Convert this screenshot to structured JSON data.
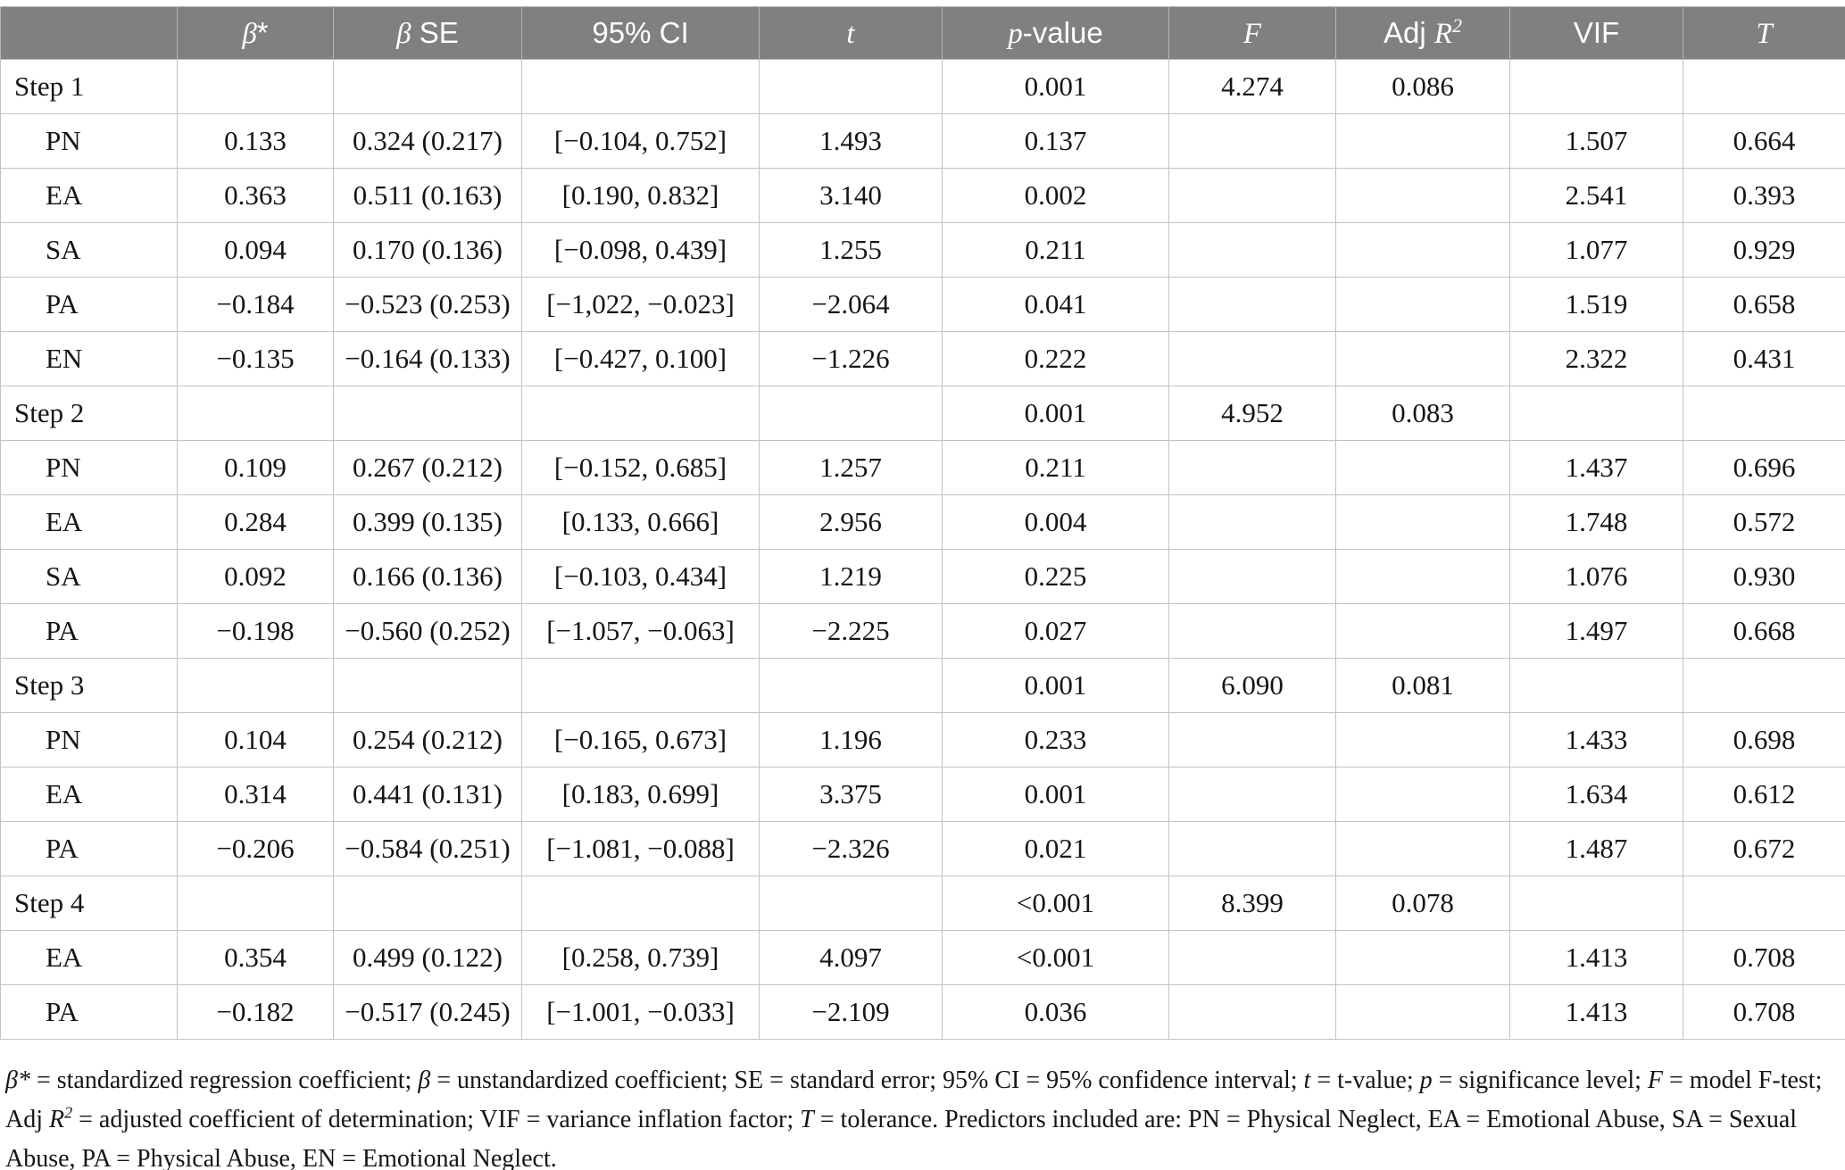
{
  "colors": {
    "header_background": "#7f8080",
    "header_text": "#ffffff",
    "cell_border": "#c2c2c2",
    "body_text": "#151515"
  },
  "table": {
    "column_keys": [
      "label",
      "beta-std",
      "beta-se",
      "ci-95",
      "t",
      "p-value",
      "f",
      "adj-r2",
      "vif",
      "tolerance"
    ],
    "columns": [
      {
        "key": "label",
        "parts": []
      },
      {
        "key": "beta-std",
        "parts": [
          {
            "t": "β",
            "i": true
          },
          {
            "t": "*",
            "i": false
          }
        ]
      },
      {
        "key": "beta-se",
        "parts": [
          {
            "t": "β",
            "i": true
          },
          {
            "t": " SE",
            "i": false
          }
        ]
      },
      {
        "key": "ci-95",
        "parts": [
          {
            "t": "95% CI",
            "i": false
          }
        ]
      },
      {
        "key": "t",
        "parts": [
          {
            "t": "t",
            "i": true
          }
        ]
      },
      {
        "key": "p-value",
        "parts": [
          {
            "t": "p",
            "i": true
          },
          {
            "t": "-value",
            "i": false
          }
        ]
      },
      {
        "key": "f",
        "parts": [
          {
            "t": "F",
            "i": true
          }
        ]
      },
      {
        "key": "adj-r2",
        "parts": [
          {
            "t": "Adj ",
            "i": false
          },
          {
            "t": "R",
            "i": true
          },
          {
            "t": "2",
            "i": true,
            "s": true
          }
        ]
      },
      {
        "key": "vif",
        "parts": [
          {
            "t": "VIF",
            "i": false
          }
        ]
      },
      {
        "key": "tolerance",
        "parts": [
          {
            "t": "T",
            "i": true
          }
        ]
      }
    ],
    "rows": [
      {
        "label": "Step 1",
        "indent": false,
        "values": [
          "",
          "",
          "",
          "",
          "0.001",
          "4.274",
          "0.086",
          "",
          ""
        ]
      },
      {
        "label": "PN",
        "indent": true,
        "values": [
          "0.133",
          "0.324 (0.217)",
          "[−0.104, 0.752]",
          "1.493",
          "0.137",
          "",
          "",
          "1.507",
          "0.664"
        ]
      },
      {
        "label": "EA",
        "indent": true,
        "values": [
          "0.363",
          "0.511 (0.163)",
          "[0.190, 0.832]",
          "3.140",
          "0.002",
          "",
          "",
          "2.541",
          "0.393"
        ]
      },
      {
        "label": "SA",
        "indent": true,
        "values": [
          "0.094",
          "0.170 (0.136)",
          "[−0.098, 0.439]",
          "1.255",
          "0.211",
          "",
          "",
          "1.077",
          "0.929"
        ]
      },
      {
        "label": "PA",
        "indent": true,
        "values": [
          "−0.184",
          "−0.523 (0.253)",
          "[−1,022, −0.023]",
          "−2.064",
          "0.041",
          "",
          "",
          "1.519",
          "0.658"
        ]
      },
      {
        "label": "EN",
        "indent": true,
        "values": [
          "−0.135",
          "−0.164 (0.133)",
          "[−0.427, 0.100]",
          "−1.226",
          "0.222",
          "",
          "",
          "2.322",
          "0.431"
        ]
      },
      {
        "label": "Step 2",
        "indent": false,
        "values": [
          "",
          "",
          "",
          "",
          "0.001",
          "4.952",
          "0.083",
          "",
          ""
        ]
      },
      {
        "label": "PN",
        "indent": true,
        "values": [
          "0.109",
          "0.267 (0.212)",
          "[−0.152, 0.685]",
          "1.257",
          "0.211",
          "",
          "",
          "1.437",
          "0.696"
        ]
      },
      {
        "label": "EA",
        "indent": true,
        "values": [
          "0.284",
          "0.399 (0.135)",
          "[0.133, 0.666]",
          "2.956",
          "0.004",
          "",
          "",
          "1.748",
          "0.572"
        ]
      },
      {
        "label": "SA",
        "indent": true,
        "values": [
          "0.092",
          "0.166 (0.136)",
          "[−0.103, 0.434]",
          "1.219",
          "0.225",
          "",
          "",
          "1.076",
          "0.930"
        ]
      },
      {
        "label": "PA",
        "indent": true,
        "values": [
          "−0.198",
          "−0.560 (0.252)",
          "[−1.057, −0.063]",
          "−2.225",
          "0.027",
          "",
          "",
          "1.497",
          "0.668"
        ]
      },
      {
        "label": "Step 3",
        "indent": false,
        "values": [
          "",
          "",
          "",
          "",
          "0.001",
          "6.090",
          "0.081",
          "",
          ""
        ]
      },
      {
        "label": "PN",
        "indent": true,
        "values": [
          "0.104",
          "0.254 (0.212)",
          "[−0.165, 0.673]",
          "1.196",
          "0.233",
          "",
          "",
          "1.433",
          "0.698"
        ]
      },
      {
        "label": "EA",
        "indent": true,
        "values": [
          "0.314",
          "0.441 (0.131)",
          "[0.183, 0.699]",
          "3.375",
          "0.001",
          "",
          "",
          "1.634",
          "0.612"
        ]
      },
      {
        "label": "PA",
        "indent": true,
        "values": [
          "−0.206",
          "−0.584 (0.251)",
          "[−1.081, −0.088]",
          "−2.326",
          "0.021",
          "",
          "",
          "1.487",
          "0.672"
        ]
      },
      {
        "label": "Step 4",
        "indent": false,
        "values": [
          "",
          "",
          "",
          "",
          "<0.001",
          "8.399",
          "0.078",
          "",
          ""
        ]
      },
      {
        "label": "EA",
        "indent": true,
        "values": [
          "0.354",
          "0.499 (0.122)",
          "[0.258, 0.739]",
          "4.097",
          "<0.001",
          "",
          "",
          "1.413",
          "0.708"
        ]
      },
      {
        "label": "PA",
        "indent": true,
        "values": [
          "−0.182",
          "−0.517 (0.245)",
          "[−1.001, −0.033]",
          "−2.109",
          "0.036",
          "",
          "",
          "1.413",
          "0.708"
        ]
      }
    ]
  },
  "footnote": {
    "segments": [
      {
        "t": "β*",
        "i": true
      },
      {
        "t": " = standardized regression coefficient; "
      },
      {
        "t": "β",
        "i": true
      },
      {
        "t": " = unstandardized coefficient; SE = standard error; 95% CI = 95% confidence interval; "
      },
      {
        "t": "t",
        "i": true
      },
      {
        "t": " = t-value; "
      },
      {
        "t": "p",
        "i": true
      },
      {
        "t": " = significance level; "
      },
      {
        "t": "F",
        "i": true
      },
      {
        "t": " = model F-test; Adj "
      },
      {
        "t": "R",
        "i": true
      },
      {
        "t": "2",
        "i": true,
        "s": true
      },
      {
        "t": " = adjusted coefficient of determination; VIF = variance inflation factor; "
      },
      {
        "t": "T",
        "i": true
      },
      {
        "t": " = tolerance. Predictors included are: PN = Physical Neglect, EA = Emotional Abuse, SA = Sexual Abuse, PA = Physical Abuse, EN = Emotional Neglect."
      }
    ]
  }
}
